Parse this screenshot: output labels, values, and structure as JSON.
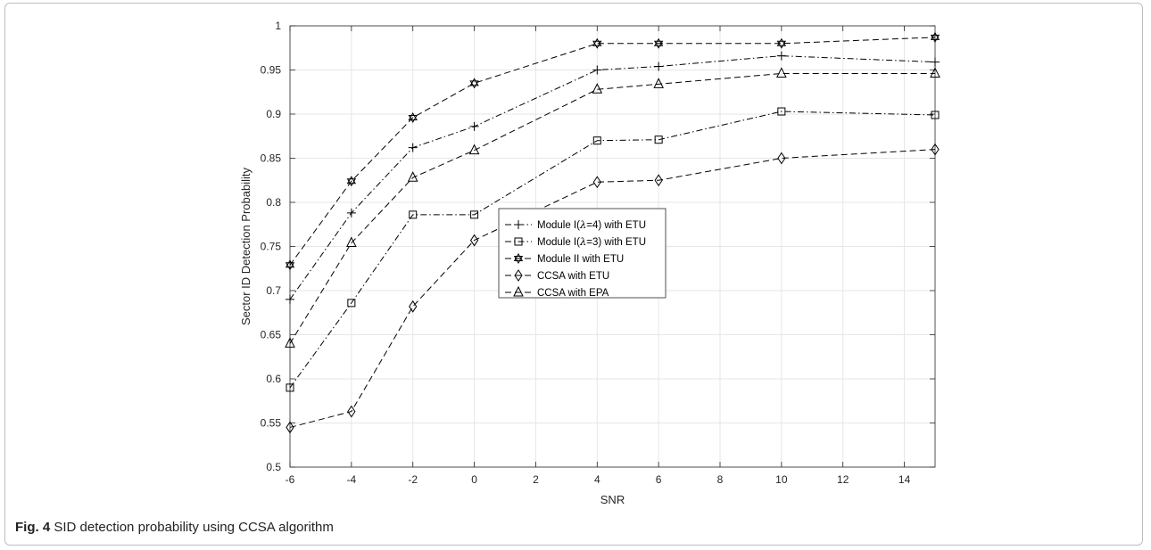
{
  "figure": {
    "caption_label": "Fig. 4",
    "caption_text": "SID detection probability using CCSA algorithm"
  },
  "chart_data": {
    "type": "line",
    "title": "",
    "xlabel": "SNR",
    "ylabel": "Sector ID Detection Probability",
    "xlim": [
      -6,
      15
    ],
    "ylim": [
      0.5,
      1
    ],
    "xticks": [
      -6,
      -4,
      -2,
      0,
      2,
      4,
      6,
      8,
      10,
      12,
      14
    ],
    "xtick_labels": [
      "-6",
      "-4",
      "-2",
      "0",
      "2",
      "4",
      "6",
      "8",
      "10",
      "12",
      "14"
    ],
    "yticks": [
      0.5,
      0.55,
      0.6,
      0.65,
      0.7,
      0.75,
      0.8,
      0.85,
      0.9,
      0.95,
      1
    ],
    "ytick_labels": [
      "0.5",
      "0.55",
      "0.6",
      "0.65",
      "0.7",
      "0.75",
      "0.8",
      "0.85",
      "0.9",
      "0.95",
      "1"
    ],
    "grid": true,
    "legend_position": "center",
    "x": [
      -6,
      -4,
      -2,
      0,
      4,
      6,
      10,
      15
    ],
    "series": [
      {
        "name": "Module I(λ=4) with ETU",
        "legend_prefix": "Module I(",
        "legend_symbol": "λ",
        "legend_suffix": "=4) with ETU",
        "marker": "plus",
        "dash": "dashdot",
        "values": [
          0.69,
          0.788,
          0.862,
          0.886,
          0.95,
          0.954,
          0.966,
          0.959
        ]
      },
      {
        "name": "Module I(λ=3) with ETU",
        "legend_prefix": "Module I(",
        "legend_symbol": "λ",
        "legend_suffix": "=3) with ETU",
        "marker": "square",
        "dash": "dashdot",
        "values": [
          0.59,
          0.686,
          0.786,
          0.786,
          0.87,
          0.871,
          0.903,
          0.899
        ]
      },
      {
        "name": "Module II with ETU",
        "legend_prefix": "Module II with ETU",
        "legend_symbol": "",
        "legend_suffix": "",
        "marker": "hexagram",
        "dash": "dashed",
        "values": [
          0.729,
          0.824,
          0.896,
          0.935,
          0.98,
          0.98,
          0.98,
          0.987
        ]
      },
      {
        "name": "CCSA with ETU",
        "legend_prefix": "CCSA with ETU",
        "legend_symbol": "",
        "legend_suffix": "",
        "marker": "diamond",
        "dash": "dashed",
        "values": [
          0.545,
          0.563,
          0.682,
          0.757,
          0.823,
          0.825,
          0.85,
          0.86
        ]
      },
      {
        "name": "CCSA with EPA",
        "legend_prefix": "CCSA with EPA",
        "legend_symbol": "",
        "legend_suffix": "",
        "marker": "triangle",
        "dash": "dashed",
        "values": [
          0.64,
          0.754,
          0.828,
          0.859,
          0.928,
          0.934,
          0.946,
          0.946
        ]
      }
    ]
  }
}
